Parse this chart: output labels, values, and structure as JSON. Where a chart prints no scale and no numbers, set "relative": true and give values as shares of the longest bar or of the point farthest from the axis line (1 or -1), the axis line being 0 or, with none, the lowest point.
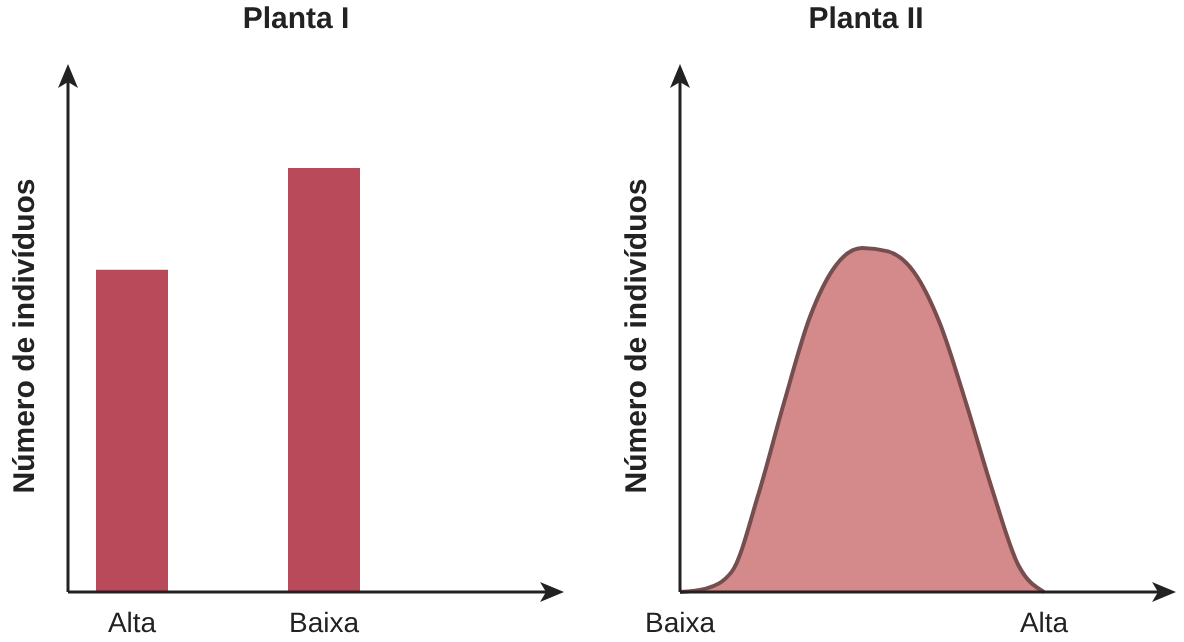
{
  "chart_data": [
    {
      "type": "bar",
      "title": "Planta I",
      "ylabel": "Número de indivíduos",
      "categories": [
        "Alta",
        "Baixa"
      ],
      "values": [
        0.76,
        1
      ],
      "color": "#b84a5a",
      "relative": true
    },
    {
      "type": "area",
      "title": "Planta II",
      "ylabel": "Número de indivíduos",
      "categories": [
        "Baixa",
        null,
        null,
        null,
        null,
        null,
        null,
        null,
        null,
        null,
        null,
        null,
        null,
        null,
        "Alta"
      ],
      "series": [
        {
          "color": "#d4898a",
          "values": [
            0,
            0.01,
            0.06,
            0.28,
            0.55,
            0.8,
            0.95,
            1,
            0.99,
            0.93,
            0.78,
            0.55,
            0.3,
            0.08,
            0
          ]
        }
      ],
      "relative": true
    }
  ]
}
